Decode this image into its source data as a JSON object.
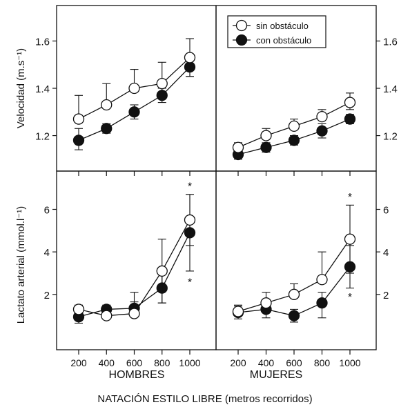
{
  "figure": {
    "xlabel_global": "NATACIÓN ESTILO LIBRE (metros recorridos)",
    "ylabel_top": "Velocidad (m.s⁻¹)",
    "ylabel_bottom": "Lactato arterial (mmol.l⁻¹)",
    "group_labels": [
      "HOMBRES",
      "MUJERES"
    ],
    "legend": {
      "placement": "top-left of right-top panel",
      "entries": [
        {
          "label": "sin obstáculo",
          "marker": "open-circle"
        },
        {
          "label": "con obstáculo",
          "marker": "filled-circle"
        }
      ]
    },
    "colors": {
      "ink": "#111111",
      "open_fill": "#ffffff",
      "filled_fill": "#111111"
    }
  },
  "chart_data": [
    {
      "type": "line",
      "panel": "hombres-velocidad",
      "x": [
        200,
        400,
        600,
        800,
        1000
      ],
      "xticks": [
        "200",
        "400",
        "600",
        "800",
        "1000"
      ],
      "ylim": [
        1.05,
        1.75
      ],
      "yticks": [
        "1.2",
        "1.4",
        "1.6"
      ],
      "ytick_values": [
        1.2,
        1.4,
        1.6
      ],
      "series": [
        {
          "name": "sin obstáculo",
          "marker": "open",
          "values": [
            1.27,
            1.33,
            1.4,
            1.42,
            1.53
          ],
          "err_up": [
            0.1,
            0.09,
            0.08,
            0.09,
            0.08
          ],
          "err_down": [
            0,
            0,
            0,
            0,
            0.08
          ]
        },
        {
          "name": "con obstáculo",
          "marker": "filled",
          "values": [
            1.18,
            1.23,
            1.3,
            1.37,
            1.49
          ],
          "err_up": [
            0.05,
            0.02,
            0.03,
            0.03,
            0.04
          ],
          "err_down": [
            0.04,
            0.02,
            0.03,
            0.03,
            0.04
          ]
        }
      ],
      "annotations": []
    },
    {
      "type": "line",
      "panel": "mujeres-velocidad",
      "x": [
        200,
        400,
        600,
        800,
        1000
      ],
      "xticks": [
        "200",
        "400",
        "600",
        "800",
        "1000"
      ],
      "ylim": [
        1.05,
        1.75
      ],
      "yticks": [
        "1.2",
        "1.4",
        "1.6"
      ],
      "ytick_values": [
        1.2,
        1.4,
        1.6
      ],
      "series": [
        {
          "name": "sin obstáculo",
          "marker": "open",
          "values": [
            1.15,
            1.2,
            1.24,
            1.28,
            1.34
          ],
          "err_up": [
            0.02,
            0.03,
            0.03,
            0.03,
            0.04
          ],
          "err_down": [
            0,
            0,
            0,
            0,
            0.03
          ]
        },
        {
          "name": "con obstáculo",
          "marker": "filled",
          "values": [
            1.12,
            1.15,
            1.18,
            1.22,
            1.27
          ],
          "err_up": [
            0.02,
            0.02,
            0.02,
            0.03,
            0.02
          ],
          "err_down": [
            0.02,
            0.02,
            0.02,
            0.03,
            0.02
          ]
        }
      ],
      "annotations": []
    },
    {
      "type": "line",
      "panel": "hombres-lactato",
      "x": [
        200,
        400,
        600,
        800,
        1000
      ],
      "xticks": [
        "200",
        "400",
        "600",
        "800",
        "1000"
      ],
      "ylim": [
        -0.6,
        7.8
      ],
      "yticks": [
        "2",
        "4",
        "6"
      ],
      "ytick_values": [
        2,
        4,
        6
      ],
      "series": [
        {
          "name": "sin obstáculo",
          "marker": "open",
          "values": [
            1.3,
            1.0,
            1.1,
            3.1,
            5.5
          ],
          "err_up": [
            0.2,
            0.3,
            1.0,
            1.5,
            1.2
          ],
          "err_down": [
            0,
            0,
            0,
            1.5,
            1.2
          ]
        },
        {
          "name": "con obstáculo",
          "marker": "filled",
          "values": [
            0.95,
            1.3,
            1.35,
            2.3,
            4.9
          ],
          "err_up": [
            0.3,
            0.2,
            0.3,
            0.7,
            1.8
          ],
          "err_down": [
            0.3,
            0.2,
            0.3,
            0.7,
            1.8
          ]
        }
      ],
      "annotations": [
        {
          "x": 1000,
          "y": 7.1,
          "text": "*"
        },
        {
          "x": 1000,
          "y": 2.6,
          "text": "*"
        }
      ]
    },
    {
      "type": "line",
      "panel": "mujeres-lactato",
      "x": [
        200,
        400,
        600,
        800,
        1000
      ],
      "xticks": [
        "200",
        "400",
        "600",
        "800",
        "1000"
      ],
      "ylim": [
        -0.6,
        7.8
      ],
      "yticks": [
        "2",
        "4",
        "6"
      ],
      "ytick_values": [
        2,
        4,
        6
      ],
      "series": [
        {
          "name": "sin obstáculo",
          "marker": "open",
          "values": [
            1.2,
            1.6,
            2.0,
            2.7,
            4.6
          ],
          "err_up": [
            0.3,
            0.5,
            0.5,
            1.3,
            1.6
          ],
          "err_down": [
            0,
            0,
            0,
            0,
            1.6
          ]
        },
        {
          "name": "con obstáculo",
          "marker": "filled",
          "values": [
            1.15,
            1.3,
            1.0,
            1.6,
            3.3
          ],
          "err_up": [
            0.3,
            0.4,
            0.3,
            0.5,
            1.0
          ],
          "err_down": [
            0.3,
            0.4,
            0.3,
            0.7,
            1.0
          ]
        }
      ],
      "annotations": [
        {
          "x": 1000,
          "y": 6.6,
          "text": "*"
        },
        {
          "x": 1000,
          "y": 1.9,
          "text": "*"
        }
      ]
    }
  ]
}
